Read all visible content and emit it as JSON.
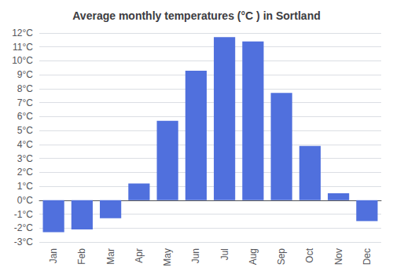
{
  "chart_data": {
    "type": "bar",
    "title": "Average monthly temperatures (°C ) in Sortland",
    "categories": [
      "Jan",
      "Feb",
      "Mar",
      "Apr",
      "May",
      "Jun",
      "Jul",
      "Aug",
      "Sep",
      "Oct",
      "Nov",
      "Dec"
    ],
    "values": [
      -2.3,
      -2.1,
      -1.3,
      1.2,
      5.7,
      9.3,
      11.7,
      11.4,
      7.7,
      3.9,
      0.5,
      -1.5
    ],
    "ylim": [
      -3,
      12
    ],
    "yticks": [
      {
        "value": -3,
        "label": "-3°C"
      },
      {
        "value": -2,
        "label": "-2°C"
      },
      {
        "value": -1,
        "label": "-1°C"
      },
      {
        "value": 0,
        "label": "0°C"
      },
      {
        "value": 1,
        "label": "1°C"
      },
      {
        "value": 2,
        "label": "2°C"
      },
      {
        "value": 3,
        "label": "3°C"
      },
      {
        "value": 4,
        "label": "4°C"
      },
      {
        "value": 5,
        "label": "5°C"
      },
      {
        "value": 6,
        "label": "6°C"
      },
      {
        "value": 7,
        "label": "7°C"
      },
      {
        "value": 8,
        "label": "8°C"
      },
      {
        "value": 9,
        "label": "9°C"
      },
      {
        "value": 10,
        "label": "10°C"
      },
      {
        "value": 11,
        "label": "11°C"
      },
      {
        "value": 12,
        "label": "12°C"
      }
    ],
    "grid": true
  }
}
